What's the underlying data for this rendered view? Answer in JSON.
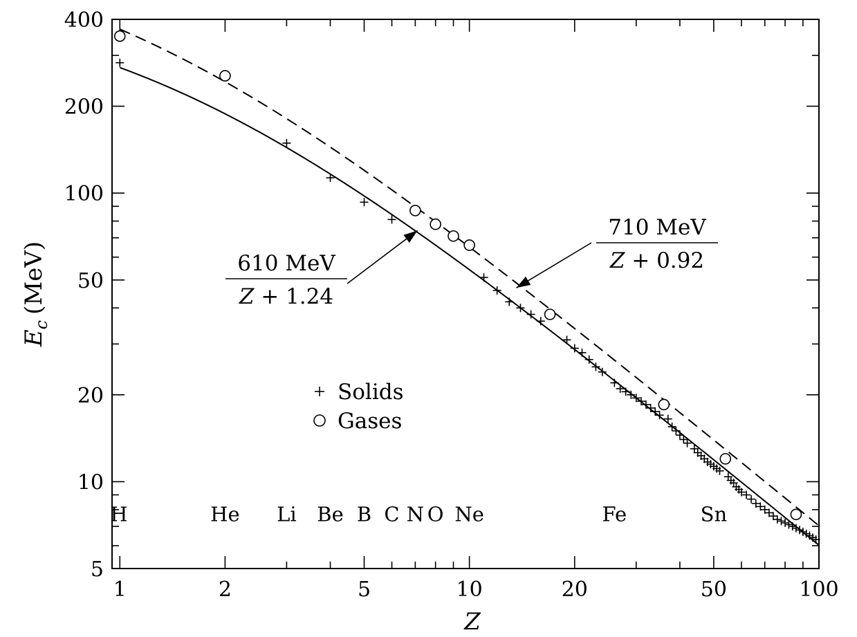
{
  "chart_data": {
    "type": "scatter",
    "xscale": "log",
    "yscale": "log",
    "xlim": [
      0.95,
      100
    ],
    "ylim": [
      5,
      400
    ],
    "xlabel": "Z",
    "ylabel_main": "E",
    "ylabel_sub": "c",
    "ylabel_unit": "(MeV)",
    "xticks": [
      {
        "v": 1,
        "label": "1"
      },
      {
        "v": 2,
        "label": "2"
      },
      {
        "v": 5,
        "label": "5"
      },
      {
        "v": 10,
        "label": "10"
      },
      {
        "v": 20,
        "label": "20"
      },
      {
        "v": 50,
        "label": "50"
      },
      {
        "v": 100,
        "label": "100"
      }
    ],
    "yticks": [
      {
        "v": 5,
        "label": "5"
      },
      {
        "v": 10,
        "label": "10"
      },
      {
        "v": 20,
        "label": "20"
      },
      {
        "v": 50,
        "label": "50"
      },
      {
        "v": 100,
        "label": "100"
      },
      {
        "v": 200,
        "label": "200"
      },
      {
        "v": 400,
        "label": "400"
      }
    ],
    "series": [
      {
        "name": "Solids",
        "marker": "plus",
        "points": [
          [
            1,
            283
          ],
          [
            3,
            149
          ],
          [
            4,
            113
          ],
          [
            5,
            93
          ],
          [
            6,
            81
          ],
          [
            11,
            51
          ],
          [
            12,
            46
          ],
          [
            13,
            42
          ],
          [
            14,
            40
          ],
          [
            15,
            38
          ],
          [
            16,
            36
          ],
          [
            19,
            31
          ],
          [
            20,
            29
          ],
          [
            21,
            28
          ],
          [
            22,
            26.5
          ],
          [
            23,
            25
          ],
          [
            24,
            24
          ],
          [
            26,
            22
          ],
          [
            27,
            21
          ],
          [
            28,
            20.5
          ],
          [
            29,
            20
          ],
          [
            30,
            19.5
          ],
          [
            31,
            19
          ],
          [
            32,
            18.5
          ],
          [
            33,
            18
          ],
          [
            34,
            17.5
          ],
          [
            35,
            17
          ],
          [
            37,
            16.5
          ],
          [
            38,
            15.5
          ],
          [
            39,
            15
          ],
          [
            40,
            14.5
          ],
          [
            41,
            14
          ],
          [
            42,
            13.6
          ],
          [
            44,
            13
          ],
          [
            45,
            12.6
          ],
          [
            46,
            12.3
          ],
          [
            47,
            12
          ],
          [
            48,
            11.7
          ],
          [
            49,
            11.5
          ],
          [
            50,
            11.3
          ],
          [
            51,
            11.1
          ],
          [
            52,
            10.9
          ],
          [
            55,
            10.4
          ],
          [
            56,
            10.1
          ],
          [
            57,
            9.9
          ],
          [
            58,
            9.6
          ],
          [
            59,
            9.4
          ],
          [
            60,
            9.2
          ],
          [
            62,
            9.0
          ],
          [
            64,
            8.7
          ],
          [
            66,
            8.4
          ],
          [
            68,
            8.2
          ],
          [
            70,
            8.0
          ],
          [
            72,
            7.8
          ],
          [
            74,
            7.6
          ],
          [
            76,
            7.4
          ],
          [
            78,
            7.3
          ],
          [
            80,
            7.2
          ],
          [
            82,
            7.1
          ],
          [
            84,
            7.0
          ],
          [
            86,
            6.9
          ],
          [
            88,
            6.8
          ],
          [
            90,
            6.7
          ],
          [
            92,
            6.6
          ],
          [
            94,
            6.5
          ],
          [
            96,
            6.4
          ],
          [
            98,
            6.3
          ]
        ]
      },
      {
        "name": "Gases",
        "marker": "circle",
        "points": [
          [
            1,
            350
          ],
          [
            2,
            255
          ],
          [
            7,
            87
          ],
          [
            8,
            78
          ],
          [
            9,
            71
          ],
          [
            10,
            66
          ],
          [
            17,
            38
          ],
          [
            36,
            18.5
          ],
          [
            54,
            12
          ],
          [
            86,
            7.7
          ]
        ]
      }
    ],
    "curves": [
      {
        "style": "solid",
        "numerator": 610,
        "offset": 1.24
      },
      {
        "style": "dashed",
        "numerator": 710,
        "offset": 0.92
      }
    ],
    "annotations": [
      {
        "id": "solid-fit",
        "numerator": "610 MeV",
        "denominator_var": "Z",
        "denominator_rest": " + 1.24",
        "arrow_to": [
          7.3,
          75
        ]
      },
      {
        "id": "dashed-fit",
        "numerator": "710 MeV",
        "denominator_var": "Z",
        "denominator_rest": " + 0.92",
        "arrow_to": [
          13.5,
          48
        ]
      }
    ],
    "element_labels": [
      {
        "z": 1,
        "label": "H"
      },
      {
        "z": 2,
        "label": "He"
      },
      {
        "z": 3,
        "label": "Li"
      },
      {
        "z": 4,
        "label": "Be"
      },
      {
        "z": 5,
        "label": "B"
      },
      {
        "z": 6,
        "label": "C"
      },
      {
        "z": 7,
        "label": "N"
      },
      {
        "z": 8,
        "label": "O"
      },
      {
        "z": 10,
        "label": "Ne"
      },
      {
        "z": 26,
        "label": "Fe"
      },
      {
        "z": 50,
        "label": "Sn"
      }
    ],
    "legend": [
      {
        "marker": "plus",
        "label": "Solids"
      },
      {
        "marker": "circle",
        "label": "Gases"
      }
    ]
  }
}
